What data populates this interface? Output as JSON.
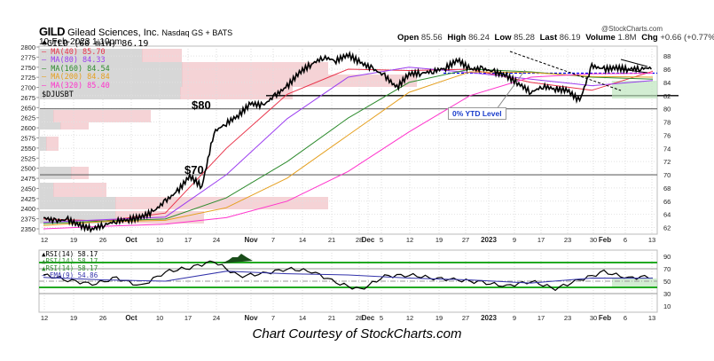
{
  "header": {
    "symbol": "GILD",
    "company": "Gilead Sciences, Inc.",
    "exchange": "Nasdaq GS + BATS",
    "datetime": "10-Feb-2023 1:10pm",
    "watermark": "@StockCharts.com",
    "ohlc": {
      "open_label": "Open",
      "open": "85.56",
      "high_label": "High",
      "high": "86.24",
      "low_label": "Low",
      "low": "85.28",
      "last_label": "Last",
      "last": "86.19",
      "volume_label": "Volume",
      "volume": "1.8M",
      "chg_label": "Chg",
      "chg": "+0.66 (+0.77%)",
      "chg_icon": "up-triangle-icon"
    }
  },
  "price_legend": [
    {
      "label": "GILD (60 min) 86.19",
      "color": "#000000",
      "icon": "candle-icon"
    },
    {
      "label": "MA(40) 85.70",
      "color": "#e8334a"
    },
    {
      "label": "MA(80) 84.33",
      "color": "#9b3df0"
    },
    {
      "label": "MA(160) 84.54",
      "color": "#2e8b2e"
    },
    {
      "label": "MA(200) 84.84",
      "color": "#e5a020"
    },
    {
      "label": "MA(320) 85.40",
      "color": "#ff33cc"
    },
    {
      "label": "$DJUSBT",
      "color": "#000000"
    }
  ],
  "rsi_legend": [
    {
      "label": "RSI(14) 58.17",
      "color": "#000000"
    },
    {
      "label": "RSI(14) 58.17",
      "color": "#2e8b2e"
    },
    {
      "label": "RSI(14) 58.17",
      "color": "#2e8b2e"
    },
    {
      "label": "EMA(9) 54.86",
      "color": "#3333aa"
    }
  ],
  "annotations": {
    "level_80": "$80",
    "level_70": "$70",
    "ytd_label": "0% YTD Level"
  },
  "caption": "Chart Courtesy of StockCharts.com",
  "chart_data": [
    {
      "type": "line",
      "title": "GILD Gilead Sciences, Inc. (60 min)",
      "x_ticks": [
        "12",
        "19",
        "26",
        "Oct",
        "10",
        "17",
        "24",
        "Nov",
        "7",
        "14",
        "21",
        "28",
        "Dec",
        "5",
        "12",
        "19",
        "27",
        "2023",
        "9",
        "17",
        "23",
        "30",
        "Feb",
        "6",
        "13"
      ],
      "y_right_ticks": [
        62,
        64,
        66,
        68,
        70,
        72,
        74,
        76,
        78,
        80,
        82,
        84,
        86,
        88
      ],
      "y_left_label": "$DJUSBT",
      "y_left_ticks": [
        2350,
        2375,
        2400,
        2425,
        2450,
        2475,
        2500,
        2525,
        2550,
        2575,
        2600,
        2625,
        2650,
        2675,
        2700,
        2725,
        2750,
        2775,
        2800
      ],
      "ylim": [
        61,
        89.5
      ],
      "horizontal_lines": [
        {
          "value": 80,
          "label": "$80",
          "color": "#666666"
        },
        {
          "value": 70,
          "label": "$70",
          "color": "#666666"
        },
        {
          "value": 82,
          "label": "$DJUSBT",
          "color": "#000000"
        },
        {
          "value": 85.4,
          "label": "0% YTD Level",
          "color": "#0000ee",
          "style": "dashed"
        }
      ],
      "series": [
        {
          "name": "GILD (60 min)",
          "color": "#000000",
          "x": [
            0,
            2,
            4,
            6,
            8,
            10,
            12,
            14,
            16,
            18,
            20,
            22,
            24,
            26,
            28,
            30,
            32,
            34,
            36,
            38,
            40,
            42,
            44,
            46,
            48,
            50,
            52,
            54,
            56,
            58,
            60,
            62,
            64,
            66,
            68,
            70,
            72,
            74,
            76,
            78,
            80,
            82,
            84,
            86,
            88,
            90,
            92,
            94,
            96,
            98,
            100
          ],
          "values": [
            63.5,
            63.0,
            63.2,
            62.3,
            61.8,
            62.4,
            63.0,
            63.2,
            63.6,
            64.4,
            66.0,
            67.5,
            69.8,
            68.2,
            76.5,
            77.8,
            79.0,
            80.8,
            80.5,
            82.0,
            83.4,
            85.5,
            86.8,
            87.8,
            87.3,
            88.2,
            87.0,
            86.1,
            85.0,
            83.2,
            85.3,
            85.4,
            85.7,
            86.2,
            87.4,
            86.0,
            86.1,
            85.6,
            85.0,
            83.8,
            82.5,
            83.4,
            83.0,
            82.8,
            81.2,
            86.5,
            86.0,
            86.2,
            86.0,
            86.1,
            86.2
          ]
        },
        {
          "name": "MA(40)",
          "color": "#e8334a",
          "x": [
            0,
            10,
            20,
            30,
            40,
            50,
            60,
            70,
            80,
            90,
            100
          ],
          "values": [
            63.3,
            63.0,
            64.2,
            74.0,
            82.2,
            86.0,
            85.8,
            86.0,
            84.0,
            82.8,
            85.7
          ]
        },
        {
          "name": "MA(80)",
          "color": "#9b3df0",
          "x": [
            0,
            10,
            20,
            30,
            40,
            50,
            60,
            70,
            80,
            90,
            100
          ],
          "values": [
            62.8,
            63.2,
            63.6,
            70.0,
            78.5,
            84.8,
            86.3,
            85.5,
            84.5,
            83.5,
            84.3
          ]
        },
        {
          "name": "MA(160)",
          "color": "#2e8b2e",
          "x": [
            0,
            10,
            20,
            30,
            40,
            50,
            60,
            70,
            80,
            90,
            100
          ],
          "values": [
            62.6,
            63.0,
            63.3,
            66.5,
            72.0,
            78.6,
            84.0,
            86.0,
            85.6,
            84.8,
            84.5
          ]
        },
        {
          "name": "MA(200)",
          "color": "#e5a020",
          "x": [
            0,
            10,
            20,
            30,
            40,
            50,
            60,
            70,
            80,
            90,
            100
          ],
          "values": [
            62.3,
            62.9,
            63.1,
            65.0,
            69.5,
            76.0,
            82.5,
            85.6,
            85.5,
            84.9,
            84.8
          ]
        },
        {
          "name": "MA(320)",
          "color": "#ff33cc",
          "x": [
            0,
            10,
            20,
            30,
            40,
            50,
            60,
            70,
            80,
            90,
            100
          ],
          "values": [
            61.8,
            62.2,
            62.5,
            63.5,
            66.0,
            70.5,
            76.5,
            82.0,
            84.8,
            85.3,
            85.4
          ]
        }
      ],
      "volume_by_price": "horizontal gray/pink bars on left side"
    },
    {
      "type": "line",
      "title": "RSI(14)",
      "y_ticks": [
        10,
        30,
        50,
        70,
        90
      ],
      "ylim": [
        0,
        100
      ],
      "horizontal_lines": [
        {
          "value": 80,
          "color": "#22aa22"
        },
        {
          "value": 70,
          "color": "#999999"
        },
        {
          "value": 50,
          "color": "#999999",
          "style": "dashdot"
        },
        {
          "value": 40,
          "color": "#22aa22"
        },
        {
          "value": 30,
          "color": "#999999"
        }
      ],
      "series": [
        {
          "name": "RSI(14)",
          "color": "#000000",
          "x": [
            0,
            4,
            8,
            12,
            16,
            20,
            24,
            28,
            32,
            36,
            40,
            44,
            48,
            52,
            56,
            60,
            64,
            68,
            72,
            76,
            80,
            84,
            88,
            92,
            96,
            100
          ],
          "values": [
            60,
            52,
            45,
            55,
            42,
            65,
            72,
            82,
            58,
            62,
            70,
            66,
            48,
            36,
            58,
            60,
            55,
            52,
            48,
            42,
            50,
            38,
            52,
            65,
            55,
            58.17
          ]
        },
        {
          "name": "EMA(9)",
          "color": "#3333aa",
          "x": [
            0,
            10,
            20,
            30,
            40,
            50,
            60,
            70,
            80,
            90,
            100
          ],
          "values": [
            56,
            52,
            50,
            66,
            62,
            60,
            55,
            52,
            47,
            55,
            54.86
          ]
        }
      ]
    }
  ]
}
